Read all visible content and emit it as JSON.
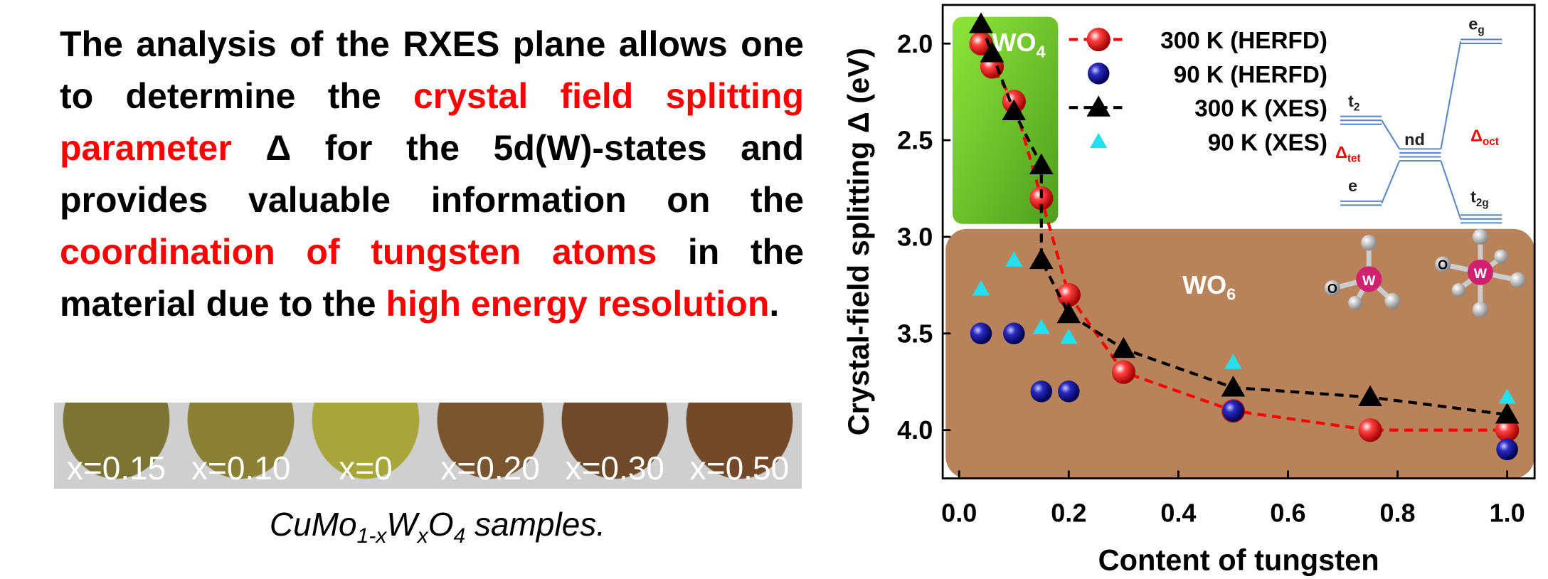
{
  "paragraph": [
    {
      "text": "The analysis of the RXES plane allows one to determine the ",
      "highlight": false
    },
    {
      "text": "crystal field splitting parameter",
      "highlight": true
    },
    {
      "text": " Δ for the 5d(W)-states and provides valuable information on the ",
      "highlight": false
    },
    {
      "text": "coordination of tungsten atoms",
      "highlight": true
    },
    {
      "text": " in the material due to the ",
      "highlight": false
    },
    {
      "text": "high energy resolution",
      "highlight": true
    },
    {
      "text": ".",
      "highlight": false
    }
  ],
  "samples": [
    {
      "label": "x=0.15",
      "color": "#7b7434"
    },
    {
      "label": "x=0.10",
      "color": "#8a8136"
    },
    {
      "label": "x=0",
      "color": "#a7a63c"
    },
    {
      "label": "x=0.20",
      "color": "#7a5630"
    },
    {
      "label": "x=0.30",
      "color": "#6e4a2a"
    },
    {
      "label": "x=0.50",
      "color": "#74492a"
    }
  ],
  "caption": [
    "CuMo",
    "1-x",
    "W",
    "x",
    "O",
    "4",
    " samples."
  ],
  "chart_data": {
    "type": "scatter",
    "xlabel": "Content of tungsten",
    "ylabel": "Crystal-field splitting Δ (eV)",
    "xlim": [
      -0.03,
      1.05
    ],
    "ylim": [
      1.8,
      4.25
    ],
    "y_inverted": true,
    "xticks": [
      {
        "value": 0,
        "label": "0.0"
      },
      {
        "value": 0.2,
        "label": "0.2"
      },
      {
        "value": 0.4,
        "label": "0.4"
      },
      {
        "value": 0.6,
        "label": "0.6"
      },
      {
        "value": 0.8,
        "label": "0.8"
      },
      {
        "value": 1,
        "label": "1.0"
      }
    ],
    "yticks": [
      {
        "value": 2,
        "label": "2.0"
      },
      {
        "value": 2.5,
        "label": "2.5"
      },
      {
        "value": 3,
        "label": "3.0"
      },
      {
        "value": 3.5,
        "label": "3.5"
      },
      {
        "value": 4,
        "label": "4.0"
      }
    ],
    "series": [
      {
        "name": "300 K (HERFD)",
        "color": "#ff0000",
        "marker": "sphere",
        "line": true,
        "x": [
          0.04,
          0.06,
          0.1,
          0.15,
          0.2,
          0.3,
          0.5,
          0.75,
          1.0
        ],
        "values": [
          2.0,
          2.12,
          2.3,
          2.8,
          3.3,
          3.7,
          3.9,
          4.0,
          4.0
        ]
      },
      {
        "name": "90 K (HERFD)",
        "color": "#1a1aa0",
        "marker": "sphere",
        "line": false,
        "x": [
          0.04,
          0.1,
          0.15,
          0.2,
          0.5,
          1.0
        ],
        "values": [
          3.5,
          3.5,
          3.8,
          3.8,
          3.9,
          4.1
        ]
      },
      {
        "name": "300 K (XES)",
        "color": "#000000",
        "marker": "triangle",
        "line": true,
        "x": [
          0.04,
          0.06,
          0.1,
          0.15,
          0.15,
          0.2,
          0.3,
          0.5,
          0.75,
          1.0
        ],
        "values": [
          1.9,
          2.05,
          2.35,
          2.63,
          3.12,
          3.4,
          3.58,
          3.78,
          3.83,
          3.92
        ]
      },
      {
        "name": "90 K (XES)",
        "color": "#22e0f0",
        "marker": "triangle",
        "line": false,
        "x": [
          0.04,
          0.1,
          0.15,
          0.2,
          0.5,
          1.0
        ],
        "values": [
          3.27,
          3.12,
          3.47,
          3.52,
          3.65,
          3.83
        ]
      }
    ],
    "regions": [
      {
        "label": "WO",
        "sub": "4"
      },
      {
        "label": "WO",
        "sub": "6"
      }
    ],
    "diagram": {
      "t2": "t",
      "t2_sub": "2",
      "e": "e",
      "nd": "nd",
      "eg": "e",
      "eg_sub": "g",
      "t2g": "t",
      "t2g_sub": "2g",
      "tet": "Δ",
      "tet_sub": "tet",
      "oct": "Δ",
      "oct_sub": "oct",
      "atom": "W",
      "oxygen": "O"
    }
  }
}
